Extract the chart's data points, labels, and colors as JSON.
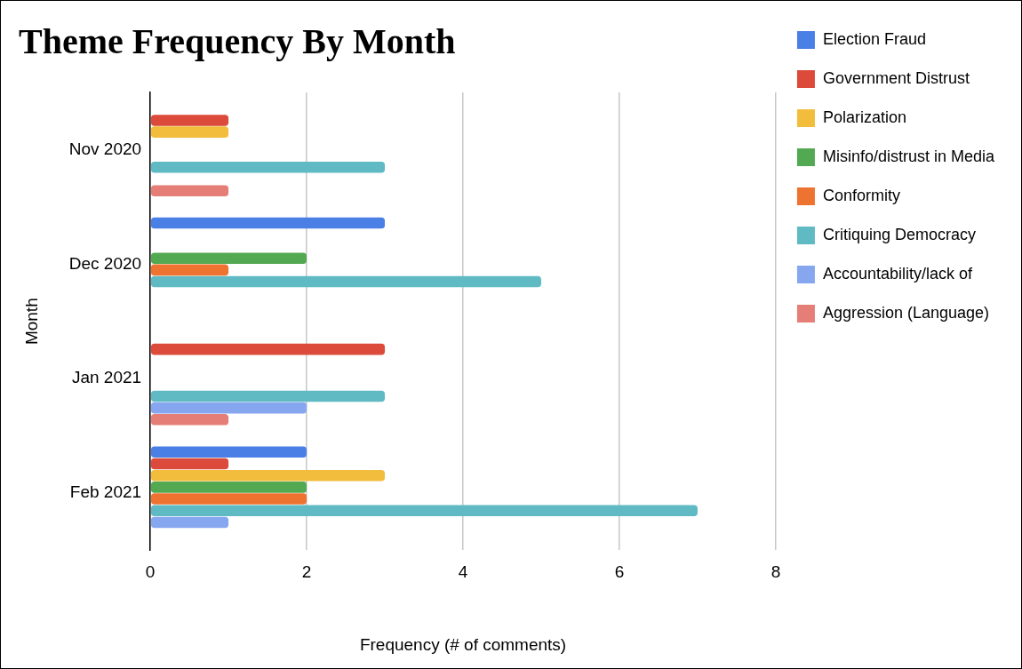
{
  "chart_data": {
    "type": "bar",
    "orientation": "horizontal",
    "title": "Theme Frequency By Month",
    "xlabel": "Frequency (# of comments)",
    "ylabel": "Month",
    "categories": [
      "Nov 2020",
      "Dec 2020",
      "Jan 2021",
      "Feb 2021"
    ],
    "series": [
      {
        "name": "Election Fraud",
        "color": "#4a7fe6",
        "values": [
          0,
          3,
          0,
          2
        ]
      },
      {
        "name": "Government Distrust",
        "color": "#db4a3b",
        "values": [
          1,
          0,
          3,
          1
        ]
      },
      {
        "name": "Polarization",
        "color": "#f2bd3c",
        "values": [
          1,
          0,
          0,
          3
        ]
      },
      {
        "name": "Misinfo/distrust in Media",
        "color": "#53a852",
        "values": [
          0,
          2,
          0,
          2
        ]
      },
      {
        "name": "Conformity",
        "color": "#ef7330",
        "values": [
          0,
          1,
          0,
          2
        ]
      },
      {
        "name": "Critiquing Democracy",
        "color": "#5fbac3",
        "values": [
          3,
          5,
          3,
          7
        ]
      },
      {
        "name": "Accountability/lack of",
        "color": "#86a7f0",
        "values": [
          0,
          0,
          2,
          1
        ]
      },
      {
        "name": "Aggression (Language)",
        "color": "#e57e77",
        "values": [
          1,
          0,
          1,
          0
        ]
      }
    ],
    "xlim": [
      0,
      8
    ],
    "xticks": [
      0,
      2,
      4,
      6,
      8
    ],
    "grid": "x",
    "legend": "right"
  }
}
